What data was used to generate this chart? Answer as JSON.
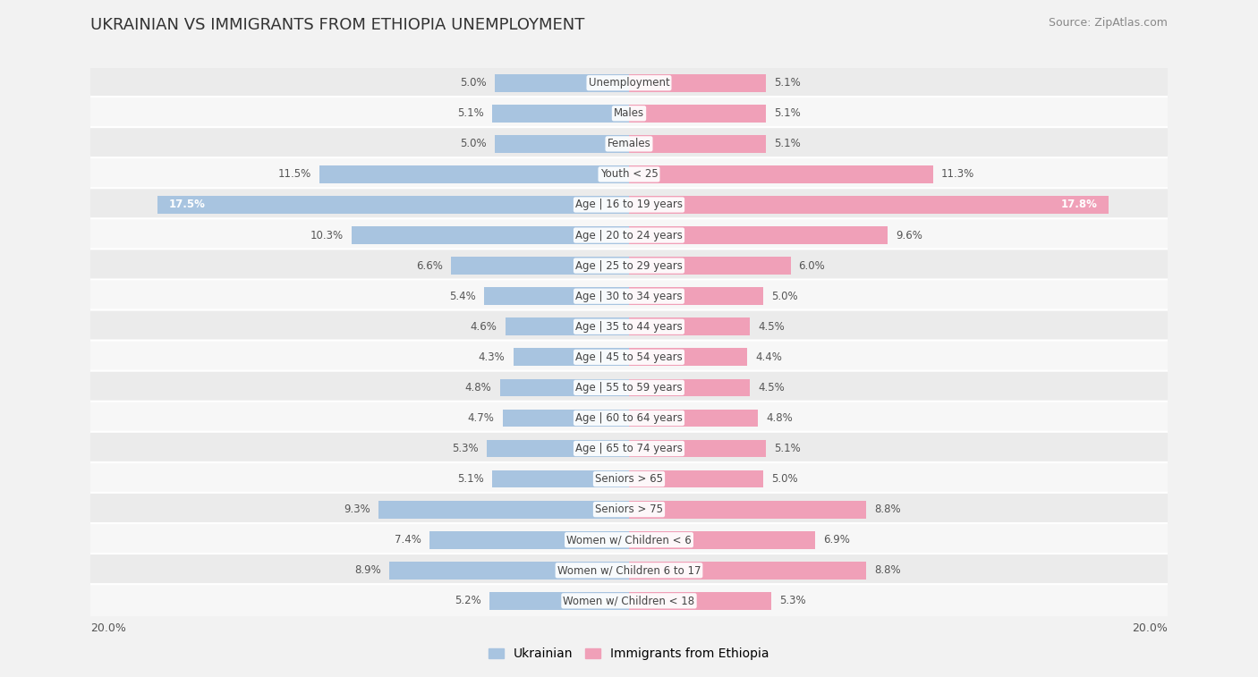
{
  "title": "UKRAINIAN VS IMMIGRANTS FROM ETHIOPIA UNEMPLOYMENT",
  "source": "Source: ZipAtlas.com",
  "categories": [
    "Unemployment",
    "Males",
    "Females",
    "Youth < 25",
    "Age | 16 to 19 years",
    "Age | 20 to 24 years",
    "Age | 25 to 29 years",
    "Age | 30 to 34 years",
    "Age | 35 to 44 years",
    "Age | 45 to 54 years",
    "Age | 55 to 59 years",
    "Age | 60 to 64 years",
    "Age | 65 to 74 years",
    "Seniors > 65",
    "Seniors > 75",
    "Women w/ Children < 6",
    "Women w/ Children 6 to 17",
    "Women w/ Children < 18"
  ],
  "ukrainian": [
    5.0,
    5.1,
    5.0,
    11.5,
    17.5,
    10.3,
    6.6,
    5.4,
    4.6,
    4.3,
    4.8,
    4.7,
    5.3,
    5.1,
    9.3,
    7.4,
    8.9,
    5.2
  ],
  "ethiopia": [
    5.1,
    5.1,
    5.1,
    11.3,
    17.8,
    9.6,
    6.0,
    5.0,
    4.5,
    4.4,
    4.5,
    4.8,
    5.1,
    5.0,
    8.8,
    6.9,
    8.8,
    5.3
  ],
  "max_val": 20.0,
  "ukrainian_color": "#a8c4e0",
  "ethiopia_color": "#f0a0b8",
  "row_bg_light": "#ebebeb",
  "row_bg_white": "#f7f7f7",
  "bar_height": 0.58,
  "background_color": "#f2f2f2",
  "title_fontsize": 13,
  "label_fontsize": 8.5,
  "value_fontsize": 8.5,
  "legend_fontsize": 10,
  "white_label_threshold": 16.0
}
